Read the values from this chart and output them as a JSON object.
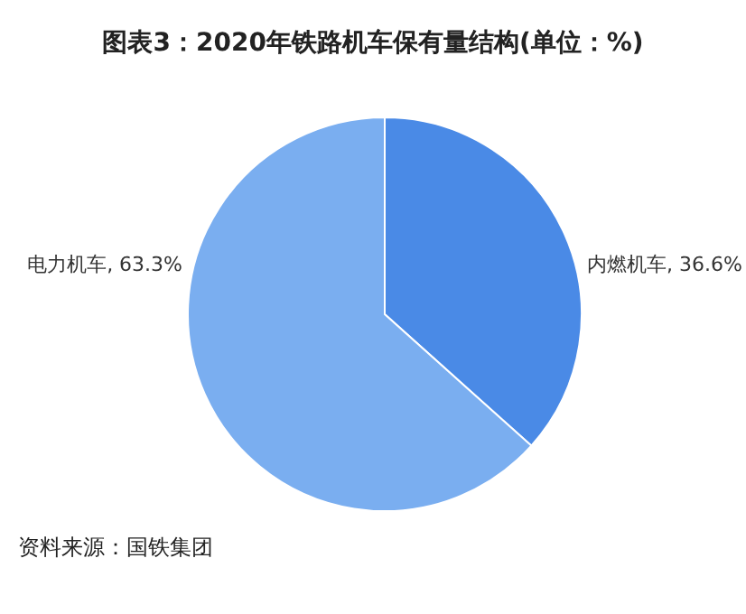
{
  "chart_data": {
    "type": "pie",
    "title": "图表3：2020年铁路机车保有量结构(单位：%)",
    "categories": [
      "内燃机车",
      "电力机车"
    ],
    "values": [
      36.6,
      63.3
    ],
    "value_labels": [
      "36.6%",
      "63.3%"
    ],
    "colors": [
      "#4a8ae6",
      "#7aaef0"
    ],
    "annotations": [
      "资料来源：国铁集团"
    ],
    "legend": false
  }
}
